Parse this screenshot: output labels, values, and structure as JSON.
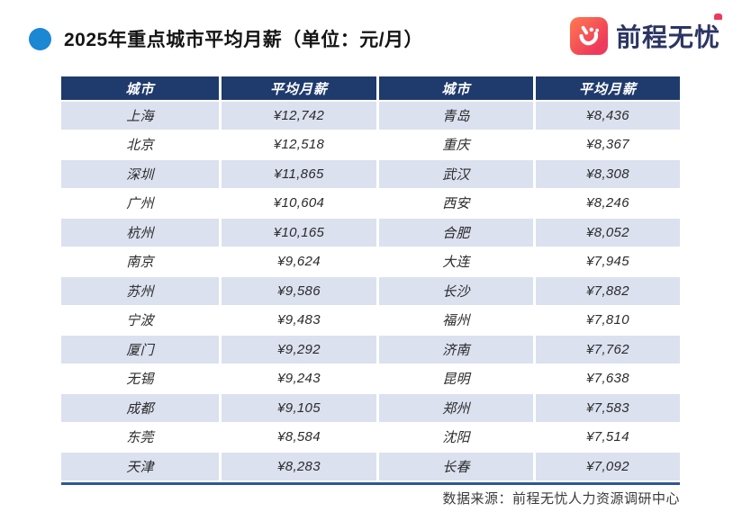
{
  "title": {
    "text": "2025年重点城市平均月薪（单位：元/月）",
    "bullet_color": "#1c87d2"
  },
  "brand": {
    "name": "前程无忧",
    "icon": "51job-hand-icon",
    "icon_gradient": [
      "#ff7a4f",
      "#ee3a5c"
    ],
    "text_color": "#2b3563"
  },
  "table": {
    "header_bg": "#1f3a6c",
    "stripe_bg": "#dbe1ef",
    "bottom_rule_color": "#2f5597",
    "headers": [
      "城市",
      "平均月薪",
      "城市",
      "平均月薪"
    ],
    "rows": [
      [
        "上海",
        "¥12,742",
        "青岛",
        "¥8,436"
      ],
      [
        "北京",
        "¥12,518",
        "重庆",
        "¥8,367"
      ],
      [
        "深圳",
        "¥11,865",
        "武汉",
        "¥8,308"
      ],
      [
        "广州",
        "¥10,604",
        "西安",
        "¥8,246"
      ],
      [
        "杭州",
        "¥10,165",
        "合肥",
        "¥8,052"
      ],
      [
        "南京",
        "¥9,624",
        "大连",
        "¥7,945"
      ],
      [
        "苏州",
        "¥9,586",
        "长沙",
        "¥7,882"
      ],
      [
        "宁波",
        "¥9,483",
        "福州",
        "¥7,810"
      ],
      [
        "厦门",
        "¥9,292",
        "济南",
        "¥7,762"
      ],
      [
        "无锡",
        "¥9,243",
        "昆明",
        "¥7,638"
      ],
      [
        "成都",
        "¥9,105",
        "郑州",
        "¥7,583"
      ],
      [
        "东莞",
        "¥8,584",
        "沈阳",
        "¥7,514"
      ],
      [
        "天津",
        "¥8,283",
        "长春",
        "¥7,092"
      ]
    ]
  },
  "footer": {
    "source": "数据来源：前程无忧人力资源调研中心"
  }
}
